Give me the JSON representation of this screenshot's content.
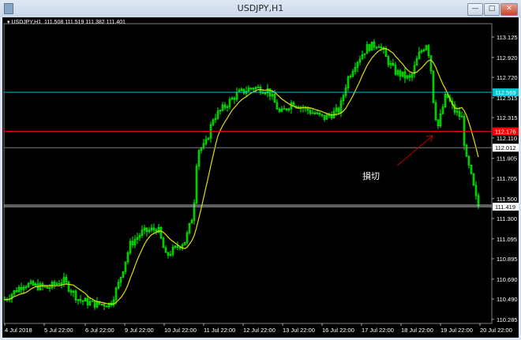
{
  "window": {
    "title": "USDJPY,H1",
    "buttons": {
      "minimize": "—",
      "maximize": "□",
      "close": "✕"
    }
  },
  "header": {
    "symbol": "USDJPY,H1",
    "open": "111.508",
    "high": "111.519",
    "low": "111.382",
    "close": "111.401"
  },
  "price_axis": [
    "113.125",
    "112.920",
    "112.720",
    "112.515",
    "112.315",
    "112.110",
    "111.905",
    "111.705",
    "111.500",
    "111.300",
    "111.095",
    "110.895",
    "110.690",
    "110.490",
    "110.285"
  ],
  "time_axis": [
    "4 Jul 2018",
    "5 Jul 22:00",
    "6 Jul 22:00",
    "9 Jul 22:00",
    "10 Jul 22:00",
    "11 Jul 22:00",
    "12 Jul 22:00",
    "13 Jul 22:00",
    "16 Jul 22:00",
    "17 Jul 22:00",
    "18 Jul 22:00",
    "19 Jul 22:00",
    "20 Jul 22:00"
  ],
  "levels": [
    {
      "price": 112.569,
      "label": "112.569",
      "color": "#00c8d0"
    },
    {
      "price": 112.176,
      "label": "112.176",
      "color": "#ff0000"
    },
    {
      "price": 112.012,
      "label": "112.012",
      "color": "#808080"
    },
    {
      "price": 111.419,
      "label": "111.419",
      "color": "#c0c0c0"
    }
  ],
  "annotation": {
    "text": "損切",
    "arrow_color": "#c00000"
  },
  "colors": {
    "candle": "#00ff00",
    "ma": "#e0e000",
    "background": "#000000"
  },
  "chart_data": {
    "type": "candlestick",
    "moving_average": true,
    "approx_closes": [
      110.48,
      110.64,
      110.6,
      110.68,
      110.48,
      110.44,
      110.44,
      110.64,
      111.04,
      111.16,
      111.2,
      110.92,
      111.08,
      111.36,
      111.99,
      112.03,
      112.31,
      112.47,
      112.55,
      112.62,
      112.59,
      112.35,
      112.47,
      112.39,
      112.31,
      112.39,
      112.7,
      112.86,
      113.02,
      113.06,
      112.9,
      112.78,
      112.7,
      112.94,
      113.06,
      112.9,
      112.39,
      112.23,
      112.55,
      112.39,
      112.31,
      111.91,
      111.79,
      111.43
    ]
  }
}
